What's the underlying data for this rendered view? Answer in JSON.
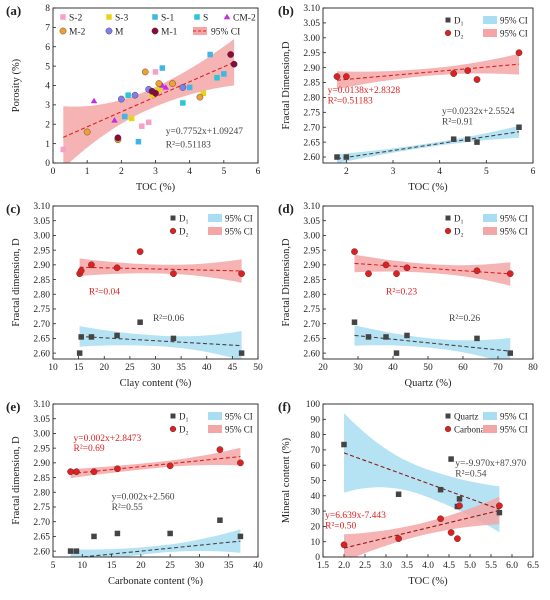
{
  "colors": {
    "ci_red": "#f4a6a6",
    "ci_blue": "#a9def2",
    "red": "#e02020",
    "dark": "#444444"
  },
  "chart_data": [
    {
      "panel": "(a)",
      "type": "scatter",
      "xlabel": "TOC (%)",
      "ylabel": "Porosity (%)",
      "xlim": [
        0,
        6
      ],
      "ylim": [
        0,
        8
      ],
      "xticks": [
        0,
        1,
        2,
        3,
        4,
        5,
        6
      ],
      "yticks": [
        0,
        1,
        2,
        3,
        4,
        5,
        6,
        7,
        8
      ],
      "legend": [
        {
          "name": "S-2",
          "color": "#f5a0c8",
          "marker": "square"
        },
        {
          "name": "S-3",
          "color": "#e8d21c",
          "marker": "square"
        },
        {
          "name": "S-1",
          "color": "#3fb6e6",
          "marker": "square"
        },
        {
          "name": "S",
          "color": "#28c6d6",
          "marker": "square"
        },
        {
          "name": "CM-2",
          "color": "#c030e0",
          "marker": "triangle"
        },
        {
          "name": "M-2",
          "color": "#f0a030",
          "marker": "circle"
        },
        {
          "name": "M",
          "color": "#7f7ff0",
          "marker": "circle"
        },
        {
          "name": "M-1",
          "color": "#8a0a3a",
          "marker": "circle"
        },
        {
          "name": "95% CI",
          "color": "#f4a6a6",
          "marker": "band"
        }
      ],
      "series": [
        {
          "name": "S-2",
          "color": "#f5a0c8",
          "marker": "square",
          "x": [
            0.3,
            2.6,
            2.8,
            3.0
          ],
          "y": [
            0.7,
            1.9,
            2.1,
            4.7
          ]
        },
        {
          "name": "S-3",
          "color": "#e8d21c",
          "marker": "square",
          "x": [
            2.3,
            2.9,
            3.1,
            4.4
          ],
          "y": [
            2.3,
            3.5,
            3.8,
            3.6
          ]
        },
        {
          "name": "S-1",
          "color": "#3fb6e6",
          "marker": "square",
          "x": [
            2.1,
            2.5,
            3.2,
            4.0,
            4.6,
            5.0
          ],
          "y": [
            2.4,
            1.1,
            4.9,
            3.9,
            5.6,
            4.6
          ]
        },
        {
          "name": "S",
          "color": "#28c6d6",
          "marker": "square",
          "x": [
            2.2,
            3.8,
            4.8
          ],
          "y": [
            3.5,
            3.1,
            4.4
          ]
        },
        {
          "name": "CM-2",
          "color": "#c030e0",
          "marker": "triangle",
          "x": [
            1.2,
            1.8,
            3.2,
            3.3
          ],
          "y": [
            3.2,
            2.2,
            4.0,
            3.9
          ]
        },
        {
          "name": "M-2",
          "color": "#f0a030",
          "marker": "circle",
          "x": [
            1.0,
            1.9,
            2.7,
            3.1,
            3.5,
            4.3
          ],
          "y": [
            1.6,
            1.2,
            4.7,
            4.1,
            4.1,
            3.4
          ]
        },
        {
          "name": "M",
          "color": "#7f7ff0",
          "marker": "circle",
          "x": [
            2.0,
            2.4,
            2.8,
            3.8
          ],
          "y": [
            3.3,
            3.5,
            3.8,
            3.9
          ]
        },
        {
          "name": "M-1",
          "color": "#8a0a3a",
          "marker": "circle",
          "x": [
            1.9,
            2.9,
            3.0,
            5.2,
            5.3
          ],
          "y": [
            1.3,
            3.7,
            3.6,
            5.6,
            5.1
          ]
        }
      ],
      "fits": [
        {
          "color": "#e02020",
          "slope": 0.7752,
          "intercept": 1.09247,
          "x0": 0.3,
          "x1": 5.3,
          "ci": "#f4a6a6",
          "ci_half": [
            1.6,
            0.5,
            1.2
          ]
        }
      ],
      "annotations": [
        {
          "text": "y=0.7752x+1.09247",
          "color": "#444444",
          "x": 3.3,
          "y": 1.5
        },
        {
          "text": "R²=0.51183",
          "color": "#444444",
          "x": 3.3,
          "y": 0.8
        }
      ]
    },
    {
      "panel": "(b)",
      "type": "scatter",
      "xlabel": "TOC (%)",
      "ylabel": "Fractal Dimension,D",
      "xlim": [
        1.5,
        6
      ],
      "ylim": [
        2.58,
        3.1
      ],
      "xticks": [
        2,
        3,
        4,
        5,
        6
      ],
      "yticks": [
        2.6,
        2.65,
        2.7,
        2.75,
        2.8,
        2.85,
        2.9,
        2.95,
        3.0,
        3.05,
        3.1
      ],
      "legend": [
        {
          "name": "D₁",
          "color": "#444444",
          "marker": "square"
        },
        {
          "name": "95% CI",
          "color": "#a9def2",
          "marker": "band"
        },
        {
          "name": "D₂",
          "color": "#e02020",
          "marker": "circle"
        },
        {
          "name": "95% CI",
          "color": "#f4a6a6",
          "marker": "band"
        }
      ],
      "series": [
        {
          "name": "D₁",
          "color": "#444444",
          "marker": "square",
          "x": [
            1.8,
            2.0,
            4.3,
            4.6,
            4.8,
            5.7
          ],
          "y": [
            2.6,
            2.6,
            2.66,
            2.66,
            2.65,
            2.7
          ]
        },
        {
          "name": "D₂",
          "color": "#e02020",
          "marker": "circle",
          "x": [
            1.8,
            2.0,
            4.3,
            4.6,
            4.8,
            5.7
          ],
          "y": [
            2.87,
            2.87,
            2.88,
            2.89,
            2.86,
            2.95
          ]
        }
      ],
      "fits": [
        {
          "color": "#e02020",
          "slope": 0.0138,
          "intercept": 2.8328,
          "x0": 1.8,
          "x1": 5.7,
          "ci": "#f4a6a6",
          "ci_half": [
            0.03,
            0.012,
            0.035
          ]
        },
        {
          "color": "#444444",
          "slope": 0.0232,
          "intercept": 2.5524,
          "x0": 1.8,
          "x1": 5.7,
          "ci": "#a9def2",
          "ci_half": [
            0.015,
            0.006,
            0.02
          ]
        }
      ],
      "annotations": [
        {
          "text": "y=0.0138x+2.8328",
          "color": "#e02020",
          "x": 1.6,
          "y": 2.815
        },
        {
          "text": "R²=0.51183",
          "color": "#e02020",
          "x": 1.6,
          "y": 2.78
        },
        {
          "text": "y=0.0232x+2.5524",
          "color": "#444444",
          "x": 4.05,
          "y": 2.745
        },
        {
          "text": "R²=0.91",
          "color": "#444444",
          "x": 4.05,
          "y": 2.71
        }
      ]
    },
    {
      "panel": "(c)",
      "type": "scatter",
      "xlabel": "Clay content (%)",
      "ylabel": "Fractal dimension, D",
      "xlim": [
        10,
        50
      ],
      "ylim": [
        2.58,
        3.1
      ],
      "xticks": [
        10,
        15,
        20,
        25,
        30,
        35,
        40,
        45,
        50
      ],
      "yticks": [
        2.6,
        2.65,
        2.7,
        2.75,
        2.8,
        2.85,
        2.9,
        2.95,
        3.0,
        3.05,
        3.1
      ],
      "legend": [
        {
          "name": "D₁",
          "color": "#444444",
          "marker": "square"
        },
        {
          "name": "95% CI",
          "color": "#a9def2",
          "marker": "band"
        },
        {
          "name": "D₂",
          "color": "#e02020",
          "marker": "circle"
        },
        {
          "name": "95% CI",
          "color": "#f4a6a6",
          "marker": "band"
        }
      ],
      "series": [
        {
          "name": "D₁",
          "color": "#444444",
          "marker": "square",
          "x": [
            15.2,
            15.5,
            17.5,
            22.5,
            27.0,
            33.5,
            46.8
          ],
          "y": [
            2.6,
            2.655,
            2.655,
            2.66,
            2.705,
            2.65,
            2.6
          ]
        },
        {
          "name": "D₂",
          "color": "#e02020",
          "marker": "circle",
          "x": [
            15.2,
            15.5,
            17.5,
            22.5,
            27.0,
            33.5,
            46.8
          ],
          "y": [
            2.87,
            2.88,
            2.9,
            2.89,
            2.945,
            2.87,
            2.87
          ]
        }
      ],
      "fits": [
        {
          "color": "#e02020",
          "slope": -0.0004,
          "intercept": 2.898,
          "x0": 15.2,
          "x1": 46.8,
          "ci": "#f4a6a6",
          "ci_half": [
            0.03,
            0.015,
            0.04
          ]
        },
        {
          "color": "#444444",
          "slope": -0.001,
          "intercept": 2.672,
          "x0": 15.2,
          "x1": 46.8,
          "ci": "#a9def2",
          "ci_half": [
            0.035,
            0.018,
            0.05
          ]
        }
      ],
      "annotations": [
        {
          "text": "R²=0.04",
          "color": "#e02020",
          "x": 17.0,
          "y": 2.8
        },
        {
          "text": "R²=0.06",
          "color": "#444444",
          "x": 29.5,
          "y": 2.71
        }
      ]
    },
    {
      "panel": "(d)",
      "type": "scatter",
      "xlabel": "Quartz (%)",
      "ylabel": "Fractal Dimension,D",
      "xlim": [
        20,
        80
      ],
      "ylim": [
        2.58,
        3.1
      ],
      "xticks": [
        20,
        30,
        40,
        50,
        60,
        70,
        80
      ],
      "yticks": [
        2.6,
        2.65,
        2.7,
        2.75,
        2.8,
        2.85,
        2.9,
        2.95,
        3.0,
        3.05,
        3.1
      ],
      "legend": [
        {
          "name": "D₁",
          "color": "#444444",
          "marker": "square"
        },
        {
          "name": "95% CI",
          "color": "#a9def2",
          "marker": "band"
        },
        {
          "name": "D₂",
          "color": "#e02020",
          "marker": "circle"
        },
        {
          "name": "95% CI",
          "color": "#f4a6a6",
          "marker": "band"
        }
      ],
      "series": [
        {
          "name": "D₁",
          "color": "#444444",
          "marker": "square",
          "x": [
            29.0,
            33.0,
            38.0,
            41.0,
            44.0,
            64.0,
            73.5
          ],
          "y": [
            2.705,
            2.655,
            2.655,
            2.6,
            2.66,
            2.65,
            2.6
          ]
        },
        {
          "name": "D₂",
          "color": "#e02020",
          "marker": "circle",
          "x": [
            29.0,
            33.0,
            38.0,
            41.0,
            44.0,
            64.0,
            73.5
          ],
          "y": [
            2.945,
            2.87,
            2.9,
            2.87,
            2.89,
            2.88,
            2.87
          ]
        }
      ],
      "fits": [
        {
          "color": "#e02020",
          "slope": -0.0008,
          "intercept": 2.928,
          "x0": 29.0,
          "x1": 73.5,
          "ci": "#f4a6a6",
          "ci_half": [
            0.03,
            0.015,
            0.04
          ]
        },
        {
          "color": "#444444",
          "slope": -0.0012,
          "intercept": 2.695,
          "x0": 29.0,
          "x1": 73.5,
          "ci": "#a9def2",
          "ci_half": [
            0.035,
            0.016,
            0.045
          ]
        }
      ],
      "annotations": [
        {
          "text": "R²=0.23",
          "color": "#e02020",
          "x": 38.0,
          "y": 2.8
        },
        {
          "text": "R²=0.26",
          "color": "#444444",
          "x": 56.0,
          "y": 2.71
        }
      ]
    },
    {
      "panel": "(e)",
      "type": "scatter",
      "xlabel": "Carbonate content (%)",
      "ylabel": "Fractal dimension, D",
      "xlim": [
        5,
        40
      ],
      "ylim": [
        2.58,
        3.1
      ],
      "xticks": [
        5,
        10,
        15,
        20,
        25,
        30,
        35,
        40
      ],
      "yticks": [
        2.6,
        2.65,
        2.7,
        2.75,
        2.8,
        2.85,
        2.9,
        2.95,
        3.0,
        3.05,
        3.1
      ],
      "legend": [
        {
          "name": "D₁",
          "color": "#444444",
          "marker": "square"
        },
        {
          "name": "95% CI",
          "color": "#a9def2",
          "marker": "band"
        },
        {
          "name": "D₂",
          "color": "#e02020",
          "marker": "circle"
        },
        {
          "name": "95% CI",
          "color": "#f4a6a6",
          "marker": "band"
        }
      ],
      "series": [
        {
          "name": "D₁",
          "color": "#444444",
          "marker": "square",
          "x": [
            8.0,
            9.0,
            12.0,
            16.0,
            25.0,
            33.5,
            37.0
          ],
          "y": [
            2.6,
            2.6,
            2.65,
            2.66,
            2.66,
            2.705,
            2.65
          ]
        },
        {
          "name": "D₂",
          "color": "#e02020",
          "marker": "circle",
          "x": [
            8.0,
            9.0,
            12.0,
            16.0,
            25.0,
            33.5,
            37.0
          ],
          "y": [
            2.87,
            2.87,
            2.87,
            2.88,
            2.89,
            2.945,
            2.9
          ]
        }
      ],
      "fits": [
        {
          "color": "#e02020",
          "slope": 0.002,
          "intercept": 2.8473,
          "x0": 8.0,
          "x1": 37.0,
          "ci": "#f4a6a6",
          "ci_half": [
            0.015,
            0.01,
            0.03
          ]
        },
        {
          "color": "#444444",
          "slope": 0.002,
          "intercept": 2.56,
          "x0": 8.0,
          "x1": 37.0,
          "ci": "#a9def2",
          "ci_half": [
            0.03,
            0.012,
            0.04
          ]
        }
      ],
      "annotations": [
        {
          "text": "y=0.002x+2.8473",
          "color": "#e02020",
          "x": 8.5,
          "y": 2.975
        },
        {
          "text": "R²=0.69",
          "color": "#e02020",
          "x": 8.5,
          "y": 2.94
        },
        {
          "text": "y=0.002x+2.560",
          "color": "#444444",
          "x": 15.0,
          "y": 2.775
        },
        {
          "text": "R²=0.55",
          "color": "#444444",
          "x": 15.0,
          "y": 2.74
        }
      ]
    },
    {
      "panel": "(f)",
      "type": "scatter",
      "xlabel": "TOC (%)",
      "ylabel": "Mineral content (%)",
      "xlim": [
        1.5,
        6.5
      ],
      "ylim": [
        0,
        100
      ],
      "xticks": [
        1.5,
        2.0,
        2.5,
        3.0,
        3.5,
        4.0,
        4.5,
        5.0,
        5.5,
        6.0,
        6.5
      ],
      "yticks": [
        0,
        10,
        20,
        30,
        40,
        50,
        60,
        70,
        80,
        90,
        100
      ],
      "legend": [
        {
          "name": "Quartz",
          "color": "#444444",
          "marker": "square"
        },
        {
          "name": "95% CI",
          "color": "#a9def2",
          "marker": "band"
        },
        {
          "name": "Carbonate",
          "color": "#e02020",
          "marker": "circle"
        },
        {
          "name": "95% CI",
          "color": "#f4a6a6",
          "marker": "band"
        }
      ],
      "series": [
        {
          "name": "Quartz",
          "color": "#444444",
          "marker": "square",
          "x": [
            2.0,
            3.3,
            4.3,
            4.55,
            4.7,
            4.75,
            5.7
          ],
          "y": [
            73.5,
            41.0,
            44.0,
            64.0,
            33.0,
            38.0,
            29.0
          ]
        },
        {
          "name": "Carbonate",
          "color": "#e02020",
          "marker": "circle",
          "x": [
            2.0,
            3.3,
            4.3,
            4.55,
            4.7,
            4.75,
            5.7
          ],
          "y": [
            8.0,
            12.0,
            25.0,
            16.0,
            12.0,
            33.5,
            33.5
          ]
        }
      ],
      "fits": [
        {
          "color": "#8b1a1a",
          "slope": -9.97,
          "intercept": 87.97,
          "x0": 2.0,
          "x1": 5.7,
          "ci": "#a9def2",
          "ci_half": [
            26,
            9,
            15
          ]
        },
        {
          "color": "#8b1a1a",
          "slope": 6.639,
          "intercept": -7.443,
          "x0": 2.0,
          "x1": 5.7,
          "ci": "#f4a6a6",
          "ci_half": [
            9,
            4,
            9
          ]
        }
      ],
      "annotations": [
        {
          "text": "y=-9.970x+87.970",
          "color": "#444444",
          "x": 4.65,
          "y": 59.5
        },
        {
          "text": "R²=0.54",
          "color": "#444444",
          "x": 4.65,
          "y": 52.5
        },
        {
          "text": "y=6.639x-7.443",
          "color": "#e02020",
          "x": 1.55,
          "y": 25.5
        },
        {
          "text": "R²=0.50",
          "color": "#e02020",
          "x": 1.55,
          "y": 18.5
        }
      ]
    }
  ]
}
